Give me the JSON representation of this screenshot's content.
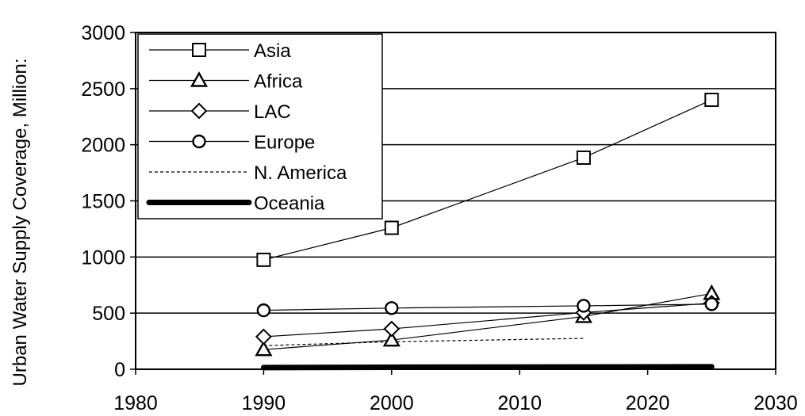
{
  "chart_data": {
    "type": "line",
    "ylabel": "Urban Water Supply Coverage, Million:",
    "xlim": [
      1980,
      2030
    ],
    "ylim": [
      0,
      3000
    ],
    "x_ticks": [
      1980,
      1990,
      2000,
      2010,
      2020,
      2030
    ],
    "y_ticks": [
      0,
      500,
      1000,
      1500,
      2000,
      2500,
      3000
    ],
    "grid": "horizontal",
    "legend_position": "top-left",
    "series": [
      {
        "name": "Asia",
        "marker": "square",
        "line": "thin",
        "x": [
          1990,
          2000,
          2015,
          2025
        ],
        "y": [
          975,
          1260,
          1885,
          2400
        ]
      },
      {
        "name": "Africa",
        "marker": "triangle",
        "line": "thin",
        "x": [
          1990,
          2000,
          2015,
          2025
        ],
        "y": [
          175,
          260,
          470,
          675
        ]
      },
      {
        "name": "LAC",
        "marker": "diamond",
        "line": "thin",
        "x": [
          1990,
          2000,
          2015,
          2025
        ],
        "y": [
          290,
          360,
          505,
          590
        ]
      },
      {
        "name": "Europe",
        "marker": "circle",
        "line": "thin",
        "x": [
          1990,
          2000,
          2015,
          2025
        ],
        "y": [
          525,
          545,
          565,
          580
        ]
      },
      {
        "name": "N. America",
        "marker": "none",
        "line": "dashed",
        "x": [
          1990,
          2000,
          2015
        ],
        "y": [
          210,
          245,
          275
        ]
      },
      {
        "name": "Oceania",
        "marker": "none",
        "line": "thick",
        "x": [
          1990,
          2000,
          2015,
          2025
        ],
        "y": [
          15,
          18,
          20,
          22
        ]
      }
    ]
  }
}
